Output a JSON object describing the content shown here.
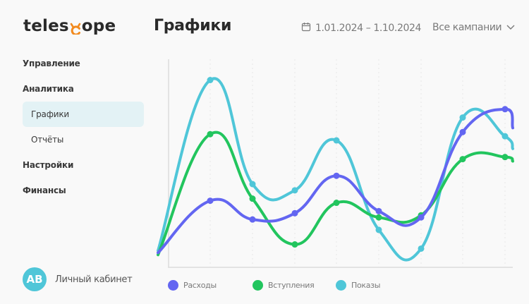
{
  "logo": {
    "text_before": "teles",
    "text_after": "ope",
    "accent_color": "#f28a1e"
  },
  "header": {
    "title": "Графики",
    "date_range": {
      "icon": "calendar-icon",
      "label": "1.01.2024 – 1.10.2024"
    },
    "campaign_filter": {
      "label": "Все кампании",
      "icon": "chevron-down-icon"
    }
  },
  "sidebar": {
    "items": [
      {
        "label": "Управление",
        "level": 0,
        "active": false
      },
      {
        "label": "Аналитика",
        "level": 0,
        "active": false
      },
      {
        "label": "Графики",
        "level": 1,
        "active": true
      },
      {
        "label": "Отчёты",
        "level": 1,
        "active": false
      },
      {
        "label": "Настройки",
        "level": 0,
        "active": false
      },
      {
        "label": "Финансы",
        "level": 0,
        "active": false
      }
    ]
  },
  "account": {
    "initials": "AB",
    "label": "Личный кабинет",
    "avatar_color": "#4fc6d8"
  },
  "colors": {
    "expenses": "#6366f1",
    "income": "#22c55e",
    "views": "#4fc6d8"
  },
  "chart_data": {
    "type": "line",
    "title": "Графики",
    "xlabel": "",
    "ylabel": "",
    "x": [
      0,
      1,
      2,
      3,
      4,
      5,
      6,
      7,
      8,
      9
    ],
    "categories": [
      "",
      "",
      "",
      "",
      "",
      "",
      "",
      "",
      "",
      ""
    ],
    "ylim": [
      0,
      100
    ],
    "grid": {
      "vertical": true,
      "horizontal": false,
      "style": "dotted"
    },
    "legend_position": "bottom",
    "smooth": true,
    "series": [
      {
        "name": "Расходы",
        "color": "#6366f1",
        "values": [
          7,
          32,
          23,
          26,
          44,
          27,
          24,
          65,
          76,
          67
        ]
      },
      {
        "name": "Вступления",
        "color": "#22c55e",
        "values": [
          6,
          64,
          33,
          11,
          31,
          24,
          25,
          52,
          53,
          51
        ]
      },
      {
        "name": "Показы",
        "color": "#4fc6d8",
        "values": [
          8,
          90,
          40,
          37,
          61,
          18,
          9,
          72,
          63,
          57
        ]
      }
    ]
  },
  "legend": [
    {
      "label": "Расходы",
      "color": "#6366f1"
    },
    {
      "label": "Вступления",
      "color": "#22c55e"
    },
    {
      "label": "Показы",
      "color": "#4fc6d8"
    }
  ]
}
